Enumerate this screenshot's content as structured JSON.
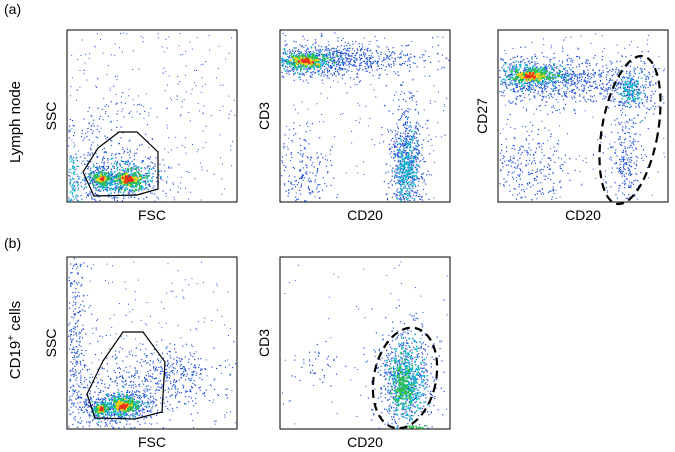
{
  "panel_a": {
    "label": "(a)",
    "row_label": "Lymph node",
    "plot1": {
      "xlabel": "FSC",
      "ylabel": "SSC"
    },
    "plot2": {
      "xlabel": "CD20",
      "ylabel": "CD3"
    },
    "plot3": {
      "xlabel": "CD20",
      "ylabel": "CD27"
    }
  },
  "panel_b": {
    "label": "(b)",
    "row_label_main": "CD19",
    "row_label_sup": "+",
    "row_label_rest": " cells",
    "plot1": {
      "xlabel": "FSC",
      "ylabel": "SSC"
    },
    "plot2": {
      "xlabel": "CD20",
      "ylabel": "CD3"
    }
  },
  "colors": {
    "sparse": "#1f4fd8",
    "mid": "#14b8c8",
    "dense": "#2fbf4f",
    "hot": "#f2d21b",
    "peak": "#e8321c",
    "gate_solid": "#000000",
    "gate_dashed": "#000000"
  }
}
